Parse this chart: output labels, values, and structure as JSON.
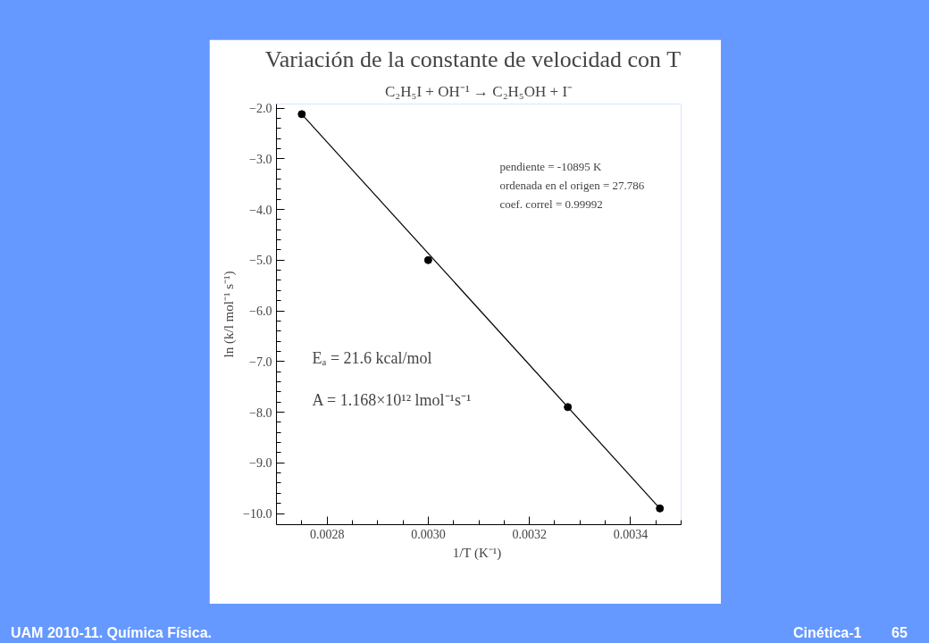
{
  "chart_data": {
    "type": "scatter",
    "title": "Variación de la constante de velocidad con T",
    "subtitle": "C₂H₅I + OH⁻¹ → C₂H₅OH + I⁻",
    "xlabel": "1/T  (K⁻¹)",
    "ylabel": "ln (k/l mol⁻¹ s⁻¹)",
    "x": [
      0.00275,
      0.003,
      0.003276,
      0.003458
    ],
    "series": [
      {
        "color": "#000000",
        "values": [
          -2.12,
          -5.0,
          -7.9,
          -9.9
        ]
      },
      {
        "type": "line",
        "color": "#000000",
        "x": [
          0.00275,
          0.003458
        ],
        "values": [
          -2.12,
          -9.9
        ],
        "marker": "none"
      }
    ],
    "marker": "circle",
    "line_style": "solid",
    "grid": false,
    "xlim": [
      0.0027,
      0.0035
    ],
    "ylim": [
      -10.22,
      -1.92
    ],
    "xticks": [
      {
        "value": 0.0028,
        "label": "0.0028"
      },
      {
        "value": 0.003,
        "label": "0.0030"
      },
      {
        "value": 0.0032,
        "label": "0.0032"
      },
      {
        "value": 0.0034,
        "label": "0.0034"
      },
      {
        "value": 0.00275,
        "label": null
      },
      {
        "value": 0.00285,
        "label": null
      },
      {
        "value": 0.0029,
        "label": null
      },
      {
        "value": 0.00295,
        "label": null
      },
      {
        "value": 0.00305,
        "label": null
      },
      {
        "value": 0.0031,
        "label": null
      },
      {
        "value": 0.00315,
        "label": null
      },
      {
        "value": 0.00325,
        "label": null
      },
      {
        "value": 0.0033,
        "label": null
      },
      {
        "value": 0.00335,
        "label": null
      },
      {
        "value": 0.00345,
        "label": null
      },
      {
        "value": 0.0035,
        "label": null
      }
    ],
    "yticks": [
      {
        "value": -2,
        "label": "−2.0"
      },
      {
        "value": -3,
        "label": "−3.0"
      },
      {
        "value": -4,
        "label": "−4.0"
      },
      {
        "value": -5,
        "label": "−5.0"
      },
      {
        "value": -6,
        "label": "−6.0"
      },
      {
        "value": -7,
        "label": "−7.0"
      },
      {
        "value": -8,
        "label": "−8.0"
      },
      {
        "value": -9,
        "label": "−9.0"
      },
      {
        "value": -10,
        "label": "−10.0"
      },
      {
        "value": -2.2,
        "label": null
      },
      {
        "value": -2.4,
        "label": null
      },
      {
        "value": -2.6,
        "label": null
      },
      {
        "value": -2.8,
        "label": null
      },
      {
        "value": -3.2,
        "label": null
      },
      {
        "value": -3.4,
        "label": null
      },
      {
        "value": -3.6,
        "label": null
      },
      {
        "value": -3.8,
        "label": null
      },
      {
        "value": -4.2,
        "label": null
      },
      {
        "value": -4.4,
        "label": null
      },
      {
        "value": -4.6,
        "label": null
      },
      {
        "value": -4.8,
        "label": null
      },
      {
        "value": -5.2,
        "label": null
      },
      {
        "value": -5.4,
        "label": null
      },
      {
        "value": -5.6,
        "label": null
      },
      {
        "value": -5.8,
        "label": null
      },
      {
        "value": -6.2,
        "label": null
      },
      {
        "value": -6.4,
        "label": null
      },
      {
        "value": -6.6,
        "label": null
      },
      {
        "value": -6.8,
        "label": null
      },
      {
        "value": -7.2,
        "label": null
      },
      {
        "value": -7.4,
        "label": null
      },
      {
        "value": -7.6,
        "label": null
      },
      {
        "value": -7.8,
        "label": null
      },
      {
        "value": -8.2,
        "label": null
      },
      {
        "value": -8.4,
        "label": null
      },
      {
        "value": -8.6,
        "label": null
      },
      {
        "value": -8.8,
        "label": null
      },
      {
        "value": -9.2,
        "label": null
      },
      {
        "value": -9.4,
        "label": null
      },
      {
        "value": -9.6,
        "label": null
      },
      {
        "value": -9.8,
        "label": null
      }
    ],
    "annotations": [
      "pendiente = -10895 K",
      "ordenada en el origen = 27.786",
      "coef. correl = 0.99992",
      "Eₐ = 21.6 kcal/mol",
      "A = 1.168×10¹² lmol⁻¹s⁻¹",
      "UAM 2010-11.  Química Física.",
      "Cinética-1",
      "65"
    ]
  }
}
